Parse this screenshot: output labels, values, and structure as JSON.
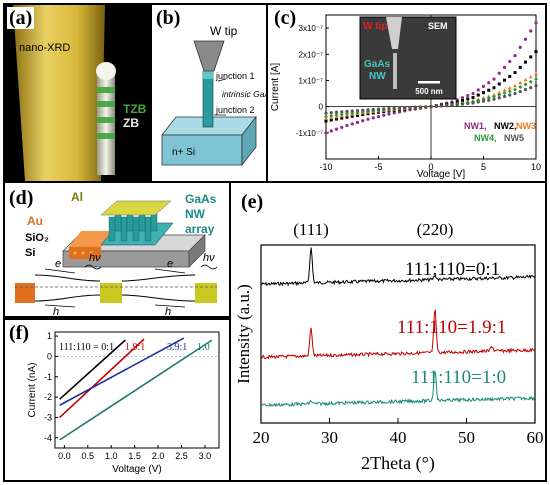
{
  "panels": {
    "a": {
      "label": "(a)",
      "nano_xrd": "nano-XRD",
      "tzb": "TZB",
      "zb": "ZB",
      "colors": {
        "beam": "#e4c83c",
        "wire": "#d8d8cc",
        "tzb_band": "#49a83f"
      }
    },
    "b": {
      "label": "(b)",
      "w_tip": "W tip",
      "junction1": "junction 1",
      "intrinsic": "intrinsic GaAs",
      "junction2": "junction 2",
      "substrate": "n+ Si",
      "colors": {
        "wire": "#2a9b9b",
        "substrate": "#7fc4d4",
        "tip": "#8a8a8a"
      }
    },
    "c": {
      "label": "(c)",
      "inset": {
        "w_tip": "W tip",
        "sem": "SEM",
        "gaas": "GaAs",
        "nw": "NW",
        "scale": "500 nm"
      },
      "legend": [
        {
          "name": "NW1",
          "color": "#8a2b8a"
        },
        {
          "name": "NW2",
          "color": "#000000"
        },
        {
          "name": "NW3",
          "color": "#f07820"
        },
        {
          "name": "NW4",
          "color": "#2e9a3a"
        },
        {
          "name": "NW5",
          "color": "#555555"
        }
      ],
      "chart_data": {
        "type": "scatter",
        "xlabel": "Voltage [V]",
        "ylabel": "Current [A]",
        "xlim": [
          -10,
          10
        ],
        "ylim": [
          -2e-07,
          3.5e-07
        ],
        "x_ticks": [
          "-10",
          "-5",
          "0",
          "5",
          "10"
        ],
        "y_ticks": [
          "-1x10⁻⁷",
          "0",
          "1x10⁻⁷",
          "2x10⁻⁷",
          "3x10⁻⁷"
        ],
        "x": [
          -10,
          -8,
          -6,
          -4,
          -2,
          0,
          2,
          4,
          6,
          8,
          10
        ],
        "series": [
          {
            "name": "NW1",
            "values": [
              -1e-07,
              -7.2e-08,
              -4.8e-08,
              -2.8e-08,
              -1.2e-08,
              0,
              1.8e-08,
              5e-08,
              1.05e-07,
              1.95e-07,
              3.2e-07
            ]
          },
          {
            "name": "NW2",
            "values": [
              -5.5e-08,
              -4e-08,
              -2.7e-08,
              -1.6e-08,
              -7e-09,
              0,
              1.2e-08,
              3.5e-08,
              7.2e-08,
              1.3e-07,
              2.1e-07
            ]
          },
          {
            "name": "NW3",
            "values": [
              -4.5e-08,
              -3.2e-08,
              -2.1e-08,
              -1.2e-08,
              -5e-09,
              0,
              8e-09,
              2.2e-08,
              4.5e-08,
              8e-08,
              1.25e-07
            ]
          },
          {
            "name": "NW4",
            "values": [
              -3.8e-08,
              -2.7e-08,
              -1.8e-08,
              -1e-08,
              -4e-09,
              0,
              7e-09,
              1.9e-08,
              3.8e-08,
              6.5e-08,
              1.05e-07
            ]
          },
          {
            "name": "NW5",
            "values": [
              -2.5e-08,
              -1.8e-08,
              -1.2e-08,
              -7e-09,
              -3e-09,
              0,
              5e-09,
              1.4e-08,
              2.8e-08,
              5e-08,
              8e-08
            ]
          }
        ]
      }
    },
    "d": {
      "label": "(d)",
      "al": "Al",
      "au": "Au",
      "gaas": "GaAs",
      "nw": "NW",
      "array": "array",
      "sio2": "SiO₂",
      "si": "Si",
      "e": "e",
      "h": "h",
      "hv": "hν",
      "colors": {
        "au": "#e07020",
        "al": "#c8c820",
        "gaas": "#2a9b9b",
        "text_teal": "#1a8a8a",
        "text_olive": "#7a7a10"
      }
    },
    "e": {
      "label": "(e)",
      "chart_data": {
        "type": "line",
        "xlabel": "2Theta (°)",
        "ylabel": "Intensity (a.u.)",
        "xlim": [
          20,
          60
        ],
        "x_ticks": [
          "20",
          "30",
          "40",
          "50",
          "60"
        ],
        "peak_labels": [
          "(111)",
          "(220)"
        ],
        "peak_positions": [
          27.3,
          45.4
        ],
        "series": [
          {
            "name": "111:110=0:1",
            "color": "#000000",
            "peaks": [
              [
                27.3,
                1.0
              ],
              [
                45.4,
                0.12
              ]
            ]
          },
          {
            "name": "111:110=1.9:1",
            "color": "#c00000",
            "peaks": [
              [
                27.3,
                0.55
              ],
              [
                45.4,
                0.85
              ],
              [
                53.7,
                0.1
              ]
            ]
          },
          {
            "name": "111:110=1:0",
            "color": "#1a8a7a",
            "peaks": [
              [
                27.3,
                0.05
              ],
              [
                45.4,
                0.55
              ]
            ]
          }
        ]
      },
      "annotations": [
        {
          "text": "111:110=0:1",
          "color": "#000000"
        },
        {
          "text": "111:110=1.9:1",
          "color": "#c00000"
        },
        {
          "text": "111:110=1:0",
          "color": "#1a8a7a"
        }
      ]
    },
    "f": {
      "label": "(f)",
      "ratio_prefix": "111:110 = 0:1",
      "ratios": [
        {
          "text": "1.9:1",
          "color": "#c00000"
        },
        {
          "text": "3.9:1",
          "color": "#1f2fa0"
        },
        {
          "text": "1:0",
          "color": "#1a7a6a"
        }
      ],
      "chart_data": {
        "type": "line",
        "xlabel": "Voltage (V)",
        "ylabel": "Current (nA)",
        "xlim": [
          -0.2,
          3.3
        ],
        "ylim": [
          -4.5,
          1.2
        ],
        "x_ticks": [
          "0.0",
          "0.5",
          "1.0",
          "1.5",
          "2.0",
          "2.5",
          "3.0"
        ],
        "y_ticks": [
          "-4",
          "-3",
          "-2",
          "-1",
          "0",
          "1"
        ],
        "series": [
          {
            "name": "0:1",
            "color": "#000000",
            "x": [
              -0.1,
              1.3
            ],
            "values": [
              -2.1,
              0.8
            ]
          },
          {
            "name": "1.9:1",
            "color": "#c00000",
            "x": [
              -0.1,
              1.7
            ],
            "values": [
              -3.0,
              0.85
            ]
          },
          {
            "name": "3.9:1",
            "color": "#1f2fa0",
            "x": [
              -0.1,
              2.55
            ],
            "values": [
              -2.4,
              0.9
            ]
          },
          {
            "name": "1:0",
            "color": "#1a7a6a",
            "x": [
              -0.1,
              3.15
            ],
            "values": [
              -4.1,
              0.8
            ]
          }
        ]
      }
    }
  }
}
